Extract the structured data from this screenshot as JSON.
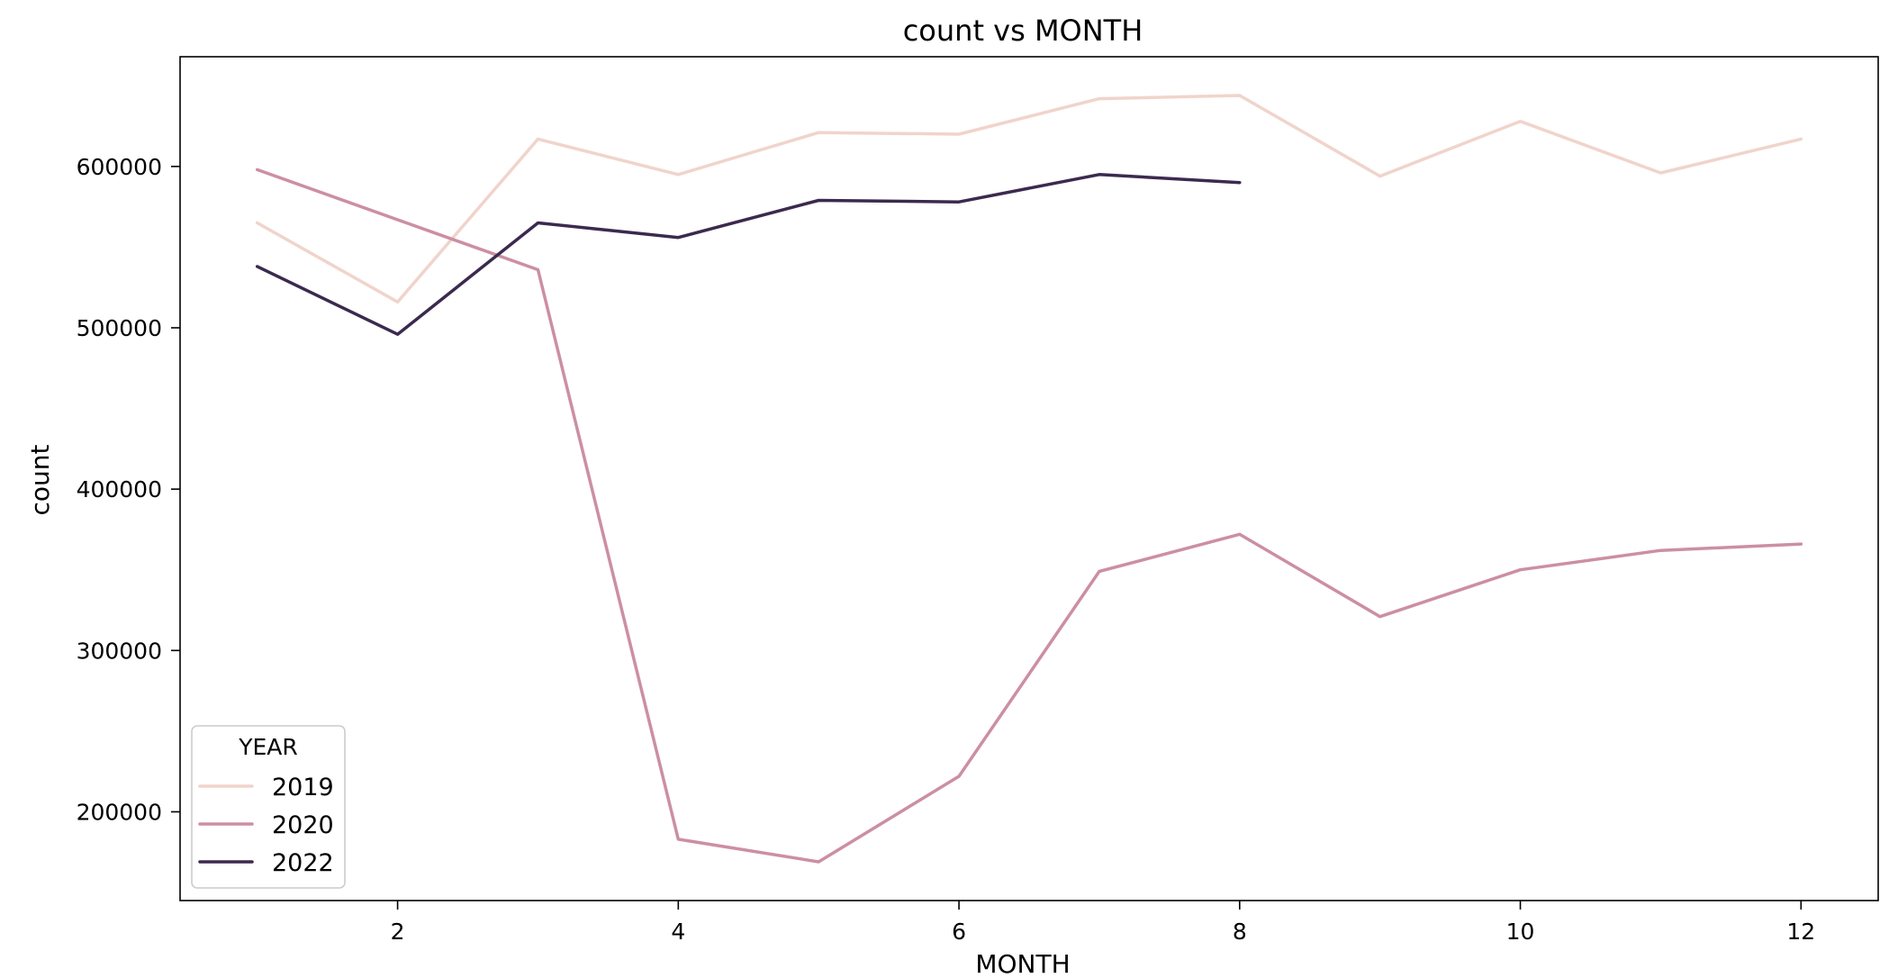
{
  "chart_data": {
    "type": "line",
    "title": "count vs MONTH",
    "xlabel": "MONTH",
    "ylabel": "count",
    "xlim": [
      0.45,
      12.55
    ],
    "ylim": [
      145000,
      668000
    ],
    "xticks": [
      2,
      4,
      6,
      8,
      10,
      12
    ],
    "yticks": [
      200000,
      300000,
      400000,
      500000,
      600000
    ],
    "grid": false,
    "legend": {
      "title": "YEAR",
      "placement": "lower-left"
    },
    "series": [
      {
        "name": "2019",
        "color": "#f0d4cb",
        "x": [
          1,
          2,
          3,
          4,
          5,
          6,
          7,
          8,
          9,
          10,
          11,
          12
        ],
        "y": [
          565000,
          516000,
          617000,
          595000,
          621000,
          620000,
          642000,
          644000,
          594000,
          628000,
          596000,
          617000
        ]
      },
      {
        "name": "2020",
        "color": "#cc8fa2",
        "x": [
          1,
          2,
          3,
          4,
          5,
          6,
          7,
          8,
          9,
          10,
          11,
          12
        ],
        "y": [
          598000,
          567000,
          536000,
          183000,
          169000,
          222000,
          349000,
          372000,
          321000,
          350000,
          362000,
          366000
        ]
      },
      {
        "name": "2022",
        "color": "#3b2a4e",
        "x": [
          1,
          2,
          3,
          4,
          5,
          6,
          7,
          8
        ],
        "y": [
          538000,
          496000,
          565000,
          556000,
          579000,
          578000,
          595000,
          590000
        ]
      }
    ]
  }
}
